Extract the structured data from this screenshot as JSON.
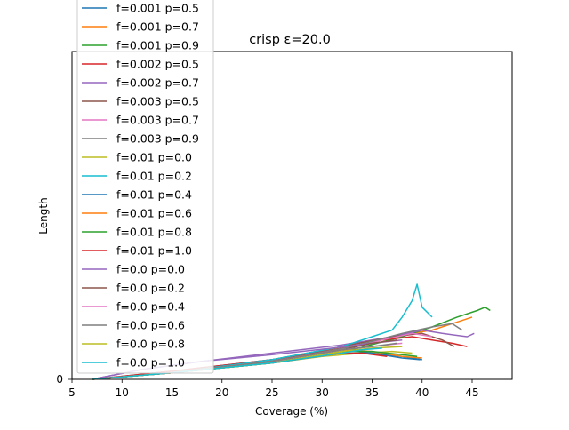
{
  "chart_data": {
    "type": "line",
    "title": "crisp ε=20.0",
    "xlabel": "Coverage (%)",
    "ylabel": "Length",
    "xlim": [
      5,
      49
    ],
    "ylim": [
      0,
      100
    ],
    "xticks": [
      5,
      10,
      15,
      20,
      25,
      30,
      35,
      40,
      45
    ],
    "yticks": [
      0
    ],
    "grid": false,
    "legend_position": "upper-left",
    "series": [
      {
        "name": "f=0.001 p=0.5",
        "color": "#1f77b4",
        "x": [
          7.0,
          15,
          25,
          32,
          35,
          38,
          40
        ],
        "y": [
          0,
          2.5,
          6,
          9,
          8,
          7,
          6
        ]
      },
      {
        "name": "f=0.001 p=0.7",
        "color": "#ff7f0e",
        "x": [
          7.0,
          15,
          25,
          33,
          36,
          39,
          41,
          43,
          45
        ],
        "y": [
          0,
          2,
          6,
          10,
          12,
          14,
          15,
          17,
          19
        ]
      },
      {
        "name": "f=0.001 p=0.9",
        "color": "#2ca02c",
        "x": [
          7.0,
          15,
          25,
          33,
          38,
          41,
          43.5,
          45.5,
          46.3,
          46.8
        ],
        "y": [
          0,
          2,
          5,
          9,
          13,
          16,
          19,
          21,
          22,
          21
        ]
      },
      {
        "name": "f=0.002 p=0.5",
        "color": "#d62728",
        "x": [
          7.0,
          15,
          25,
          32,
          36,
          39,
          41,
          43,
          44.5
        ],
        "y": [
          0,
          2.5,
          6,
          9.5,
          12,
          13,
          12,
          11,
          10
        ]
      },
      {
        "name": "f=0.002 p=0.7",
        "color": "#9467bd",
        "x": [
          7.0,
          12,
          18,
          25,
          32,
          37,
          40,
          42,
          44.5,
          45.2
        ],
        "y": [
          0,
          3,
          5.5,
          8,
          10.5,
          13,
          15,
          14,
          13,
          14
        ]
      },
      {
        "name": "f=0.003 p=0.5",
        "color": "#8c564b",
        "x": [
          7.0,
          15,
          25,
          32,
          37,
          40,
          42,
          43.2
        ],
        "y": [
          0,
          2,
          6,
          10,
          13,
          14,
          12,
          10
        ]
      },
      {
        "name": "f=0.003 p=0.7",
        "color": "#e377c2",
        "x": [
          7.0,
          15,
          25,
          32,
          36,
          39,
          41
        ],
        "y": [
          0,
          2,
          5.5,
          9,
          12,
          14,
          13
        ]
      },
      {
        "name": "f=0.003 p=0.9",
        "color": "#7f7f7f",
        "x": [
          7.0,
          15,
          25,
          33,
          38,
          41,
          43,
          44
        ],
        "y": [
          0,
          2,
          5.5,
          10,
          14,
          16,
          17,
          15
        ]
      },
      {
        "name": "f=0.01 p=0.0",
        "color": "#bcbd22",
        "x": [
          7.0,
          15,
          25,
          30,
          34,
          37,
          39
        ],
        "y": [
          0,
          2,
          5,
          7,
          8,
          8.5,
          8
        ]
      },
      {
        "name": "f=0.01 p=0.2",
        "color": "#17becf",
        "x": [
          7.0,
          15,
          25,
          32,
          35,
          37,
          38,
          39,
          39.5,
          40,
          41
        ],
        "y": [
          0,
          2,
          6,
          10,
          13,
          15,
          19,
          24,
          29,
          22,
          19
        ]
      },
      {
        "name": "f=0.01 p=0.4",
        "color": "#1f77b4",
        "x": [
          7.0,
          15,
          25,
          32,
          35,
          38,
          39.8
        ],
        "y": [
          0,
          2,
          5.5,
          9,
          8,
          6.5,
          6
        ]
      },
      {
        "name": "f=0.01 p=0.6",
        "color": "#ff7f0e",
        "x": [
          7.0,
          15,
          25,
          32,
          35,
          38,
          40
        ],
        "y": [
          0,
          2,
          5.5,
          9,
          8.5,
          7,
          6.5
        ]
      },
      {
        "name": "f=0.01 p=0.8",
        "color": "#2ca02c",
        "x": [
          7.0,
          15,
          25,
          32,
          35,
          38,
          39.5
        ],
        "y": [
          0,
          2,
          5,
          8.5,
          8.5,
          7.5,
          7
        ]
      },
      {
        "name": "f=0.01 p=1.0",
        "color": "#d62728",
        "x": [
          7.0,
          15,
          25,
          32,
          34,
          36.5
        ],
        "y": [
          0,
          2,
          5,
          8,
          8,
          7
        ]
      },
      {
        "name": "f=0.0 p=0.0",
        "color": "#9467bd",
        "x": [
          7.0,
          12,
          18,
          25,
          31,
          35,
          38
        ],
        "y": [
          0,
          3,
          5.5,
          7.5,
          9.5,
          11,
          12
        ]
      },
      {
        "name": "f=0.0 p=0.2",
        "color": "#8c564b",
        "x": [
          7.0,
          15,
          25,
          32,
          35,
          37.5
        ],
        "y": [
          0,
          2,
          5.5,
          9,
          11,
          12
        ]
      },
      {
        "name": "f=0.0 p=0.4",
        "color": "#e377c2",
        "x": [
          7.0,
          15,
          25,
          32,
          35,
          38
        ],
        "y": [
          0,
          2,
          5.5,
          9,
          10,
          11
        ]
      },
      {
        "name": "f=0.0 p=0.6",
        "color": "#7f7f7f",
        "x": [
          7.0,
          15,
          25,
          32,
          35,
          37.5
        ],
        "y": [
          0,
          2,
          5.5,
          9,
          10,
          11
        ]
      },
      {
        "name": "f=0.0 p=0.8",
        "color": "#bcbd22",
        "x": [
          7.0,
          15,
          25,
          32,
          35,
          38
        ],
        "y": [
          0,
          2,
          5,
          8.5,
          9.5,
          10
        ]
      },
      {
        "name": "f=0.0 p=1.0",
        "color": "#17becf",
        "x": [
          7.0,
          15,
          25,
          32,
          34,
          36
        ],
        "y": [
          0,
          2,
          5,
          8,
          9,
          9.5
        ]
      }
    ]
  }
}
